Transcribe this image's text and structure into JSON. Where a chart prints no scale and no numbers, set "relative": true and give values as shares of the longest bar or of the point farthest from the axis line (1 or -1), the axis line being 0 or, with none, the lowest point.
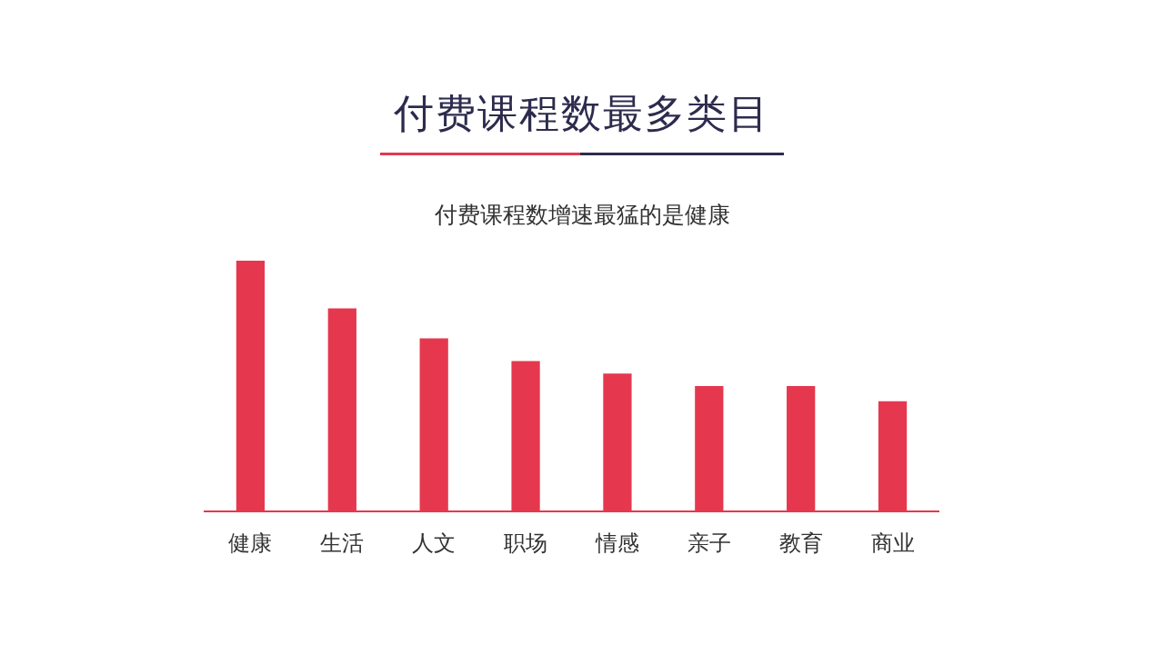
{
  "chart_data": {
    "type": "bar",
    "title": "付费课程数最多类目",
    "subtitle": "付费课程数增速最猛的是健康",
    "categories": [
      "健康",
      "生活",
      "人文",
      "职场",
      "情感",
      "亲子",
      "教育",
      "商业"
    ],
    "values": [
      1,
      0.81,
      0.69,
      0.6,
      0.55,
      0.5,
      0.5,
      0.44
    ],
    "color": "#e5384f",
    "relative": true,
    "grid": false,
    "legend": false
  }
}
